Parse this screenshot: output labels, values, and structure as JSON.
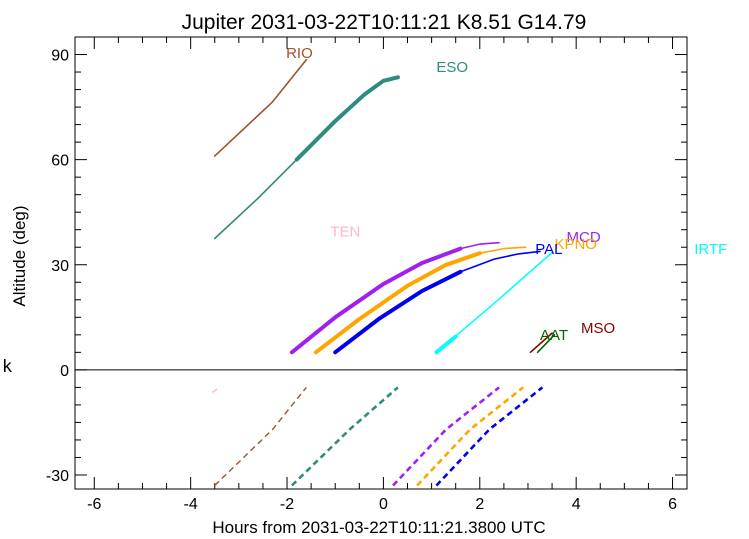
{
  "chart_data": {
    "type": "line",
    "title": "Jupiter 2031-03-22T10:11:21  K8.51  G14.79",
    "xlabel": "Hours from 2031-03-22T10:11:21.3800 UTC",
    "ylabel": "Altitude (deg)",
    "side_label": "k",
    "xlim": [
      -6.4,
      6.3
    ],
    "ylim": [
      -34,
      95
    ],
    "xticks": [
      -6,
      -4,
      -2,
      0,
      2,
      4,
      6
    ],
    "yticks": [
      -30,
      0,
      30,
      60,
      90
    ],
    "grid": false,
    "series": [
      {
        "name": "RIO",
        "color": "#a0522d",
        "label_pos": [
          -2.02,
          89
        ],
        "x": [
          -3.5,
          -2.3,
          -1.6
        ],
        "y": [
          61,
          76.5,
          88.5
        ],
        "thick_x": [],
        "thick_y": [],
        "below_x": [
          -3.5,
          -2.3,
          -1.6
        ],
        "below_y": [
          -33,
          -17,
          -5
        ]
      },
      {
        "name": "ESO",
        "color": "#2e8b80",
        "label_pos": [
          1.1,
          85
        ],
        "x": [
          -3.5,
          -2.6,
          -1.8,
          -1.0,
          -0.4,
          0.0,
          0.3
        ],
        "y": [
          37.5,
          49,
          60,
          71,
          78.5,
          82.5,
          83.5
        ],
        "thick_x": [
          -1.8,
          -1.0,
          -0.4,
          0.0,
          0.3
        ],
        "thick_y": [
          60,
          71,
          78.5,
          82.5,
          83.5
        ],
        "below_x": [
          -1.9,
          -0.7,
          0.3
        ],
        "below_y": [
          -33,
          -17,
          -5
        ]
      },
      {
        "name": "TEN",
        "color": "#ffb6c1",
        "label_pos": [
          -1.1,
          38
        ],
        "x": [],
        "y": [],
        "thick_x": [],
        "thick_y": [],
        "below_x": [
          -3.55,
          -3.45
        ],
        "below_y": [
          -6.5,
          -5.5
        ]
      },
      {
        "name": "MCD",
        "color": "#a020f0",
        "label_pos": [
          3.8,
          36.5
        ],
        "x": [
          -1.9,
          -1.0,
          0.0,
          0.8,
          1.6,
          2.0,
          2.4
        ],
        "y": [
          5,
          15,
          24.5,
          30.5,
          34.6,
          35.9,
          36.3
        ],
        "thick_x": [
          -1.9,
          -1.0,
          0.0,
          0.8,
          1.6
        ],
        "thick_y": [
          5,
          15,
          24.5,
          30.5,
          34.6
        ],
        "below_x": [
          0.2,
          1.3,
          2.4
        ],
        "below_y": [
          -33,
          -17,
          -5
        ]
      },
      {
        "name": "KPNO",
        "color": "#ffa500",
        "label_pos": [
          3.55,
          34.5
        ],
        "x": [
          -1.4,
          -0.5,
          0.5,
          1.3,
          2.0,
          2.5,
          2.95
        ],
        "y": [
          5,
          14.5,
          24,
          30,
          33.3,
          34.6,
          35.0
        ],
        "thick_x": [
          -1.4,
          -0.5,
          0.5,
          1.3,
          2.0
        ],
        "thick_y": [
          5,
          14.5,
          24,
          30,
          33.3
        ],
        "below_x": [
          0.7,
          1.8,
          2.9
        ],
        "below_y": [
          -33,
          -17,
          -5
        ]
      },
      {
        "name": "PAL",
        "color": "#0000ee",
        "label_pos": [
          3.15,
          33
        ],
        "x": [
          -1.0,
          -0.1,
          0.8,
          1.6,
          2.3,
          2.8,
          3.25
        ],
        "y": [
          5,
          14.5,
          22.5,
          28,
          31.6,
          33.1,
          33.8
        ],
        "thick_x": [
          -1.0,
          -0.1,
          0.8,
          1.6
        ],
        "thick_y": [
          5,
          14.5,
          22.5,
          28
        ],
        "below_x": [
          1.1,
          2.2,
          3.3
        ],
        "below_y": [
          -33,
          -17,
          -5
        ]
      },
      {
        "name": "IRTF",
        "color": "#00ffff",
        "label_pos": [
          6.45,
          33
        ],
        "x": [
          1.1,
          2.3,
          3.5
        ],
        "y": [
          5,
          19,
          33.5
        ],
        "thick_x": [
          1.1,
          1.5
        ],
        "thick_y": [
          5,
          9.5
        ],
        "below_x": [],
        "below_y": []
      },
      {
        "name": "AAT",
        "color": "#006400",
        "label_pos": [
          3.25,
          8.5
        ],
        "x": [
          3.2,
          3.55
        ],
        "y": [
          5,
          10
        ],
        "thick_x": [],
        "thick_y": [],
        "below_x": [],
        "below_y": []
      },
      {
        "name": "MSO",
        "color": "#8b0000",
        "label_pos": [
          4.1,
          10.5
        ],
        "x": [
          3.05,
          3.5
        ],
        "y": [
          5,
          10.5
        ],
        "thick_x": [],
        "thick_y": [],
        "below_x": [],
        "below_y": []
      }
    ]
  }
}
